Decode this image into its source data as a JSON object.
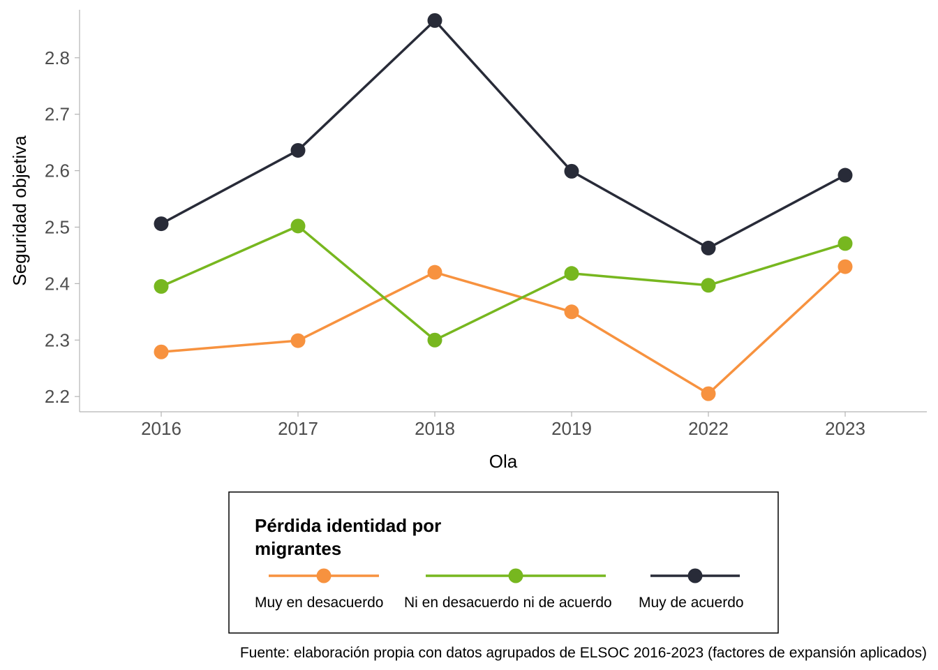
{
  "chart_data": {
    "type": "line",
    "xlabel": "Ola",
    "ylabel": "Seguridad objetiva",
    "categories": [
      "2016",
      "2017",
      "2018",
      "2019",
      "2022",
      "2023"
    ],
    "ylim": [
      2.173,
      2.885
    ],
    "yticks": [
      2.2,
      2.3,
      2.4,
      2.5,
      2.6,
      2.7,
      2.8
    ],
    "ytick_labels": [
      "2.2",
      "2.3",
      "2.4",
      "2.5",
      "2.6",
      "2.7",
      "2.8"
    ],
    "grid": false,
    "legend": {
      "title_line1": "Pérdida identidad por",
      "title_line2": "migrantes",
      "placement": "bottom"
    },
    "series": [
      {
        "name": "Muy en desacuerdo",
        "color": "#F7923F",
        "values": [
          2.279,
          2.299,
          2.42,
          2.35,
          2.205,
          2.43
        ]
      },
      {
        "name": "Ni en desacuerdo ni de acuerdo",
        "color": "#77B71F",
        "values": [
          2.395,
          2.502,
          2.3,
          2.418,
          2.397,
          2.471
        ]
      },
      {
        "name": "Muy de acuerdo",
        "color": "#282B38",
        "values": [
          2.506,
          2.636,
          2.866,
          2.599,
          2.463,
          2.592
        ]
      }
    ],
    "caption": "Fuente: elaboración propia con datos agrupados de ELSOC 2016-2023 (factores de expansión aplicados)"
  }
}
